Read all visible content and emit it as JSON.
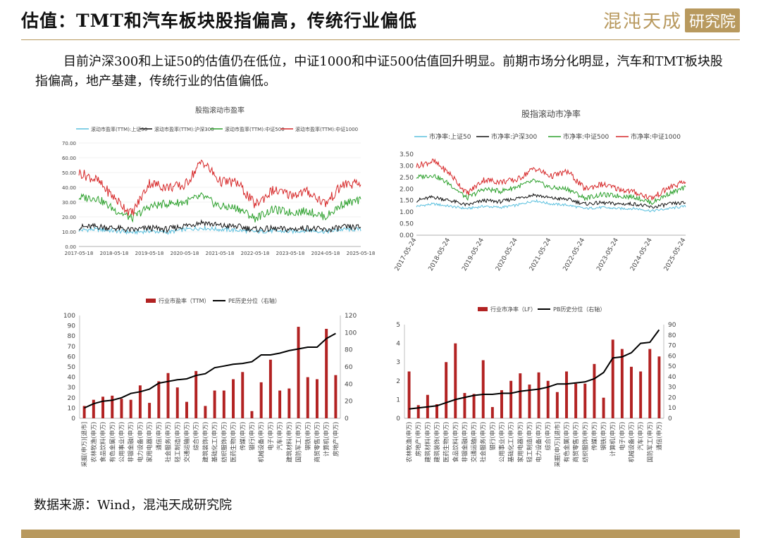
{
  "page": {
    "title": "估值：TMT和汽车板块股指偏高，传统行业偏低",
    "logo_text": "混沌天成",
    "logo_box_text": "研究院",
    "paragraph": "目前沪深300和上证50的估值仍在低位，中证1000和中证500估值回升明显。前期市场分化明显，汽车和TMT板块股指偏高，地产基建，传统行业的估值偏低。",
    "source": "数据来源：Wind，混沌天成研究院"
  },
  "colors": {
    "gold": "#b8995e",
    "red": "#d62728",
    "green": "#2ca02c",
    "black": "#111111",
    "blue": "#5bc0de",
    "bar": "#b22222"
  },
  "chart_data": [
    {
      "type": "line",
      "title": "股指滚动市盈率",
      "ylim": [
        0,
        70
      ],
      "yticks": [
        "0.00",
        "10.00",
        "20.00",
        "30.00",
        "40.00",
        "50.00",
        "60.00",
        "70.00"
      ],
      "xticks": [
        "2017-05-18",
        "2018-05-18",
        "2019-05-18",
        "2020-05-18",
        "2021-05-18",
        "2022-05-18",
        "2023-05-18",
        "2024-05-18",
        "2025-05-18"
      ],
      "series": [
        {
          "name": "滚动市盈率(TTM):上证50",
          "color": "#5bc0de",
          "values": [
            11,
            11.5,
            10.5,
            9.5,
            10.5,
            9.5,
            11.5,
            12.5,
            11.5,
            11,
            10,
            10.5,
            10,
            11,
            10,
            11.5,
            11.5
          ]
        },
        {
          "name": "滚动市盈率(TTM):沪深300",
          "color": "#111111",
          "values": [
            13,
            13.5,
            12.5,
            11,
            12.5,
            11.5,
            14,
            16.5,
            14,
            13.5,
            11.5,
            12,
            11.5,
            12.5,
            11,
            13,
            13
          ]
        },
        {
          "name": "滚动市盈率(TTM):中证500",
          "color": "#2ca02c",
          "values": [
            33,
            33,
            25,
            19,
            27,
            29,
            30,
            34,
            27,
            26,
            19,
            25,
            23,
            24,
            20,
            29,
            31
          ]
        },
        {
          "name": "滚动市盈率(TTM):中证1000",
          "color": "#d62728",
          "values": [
            50,
            45,
            33,
            22,
            43,
            40,
            41,
            58,
            44,
            43,
            28,
            38,
            35,
            37,
            29,
            42,
            42
          ]
        }
      ]
    },
    {
      "type": "line",
      "title": "股指滚动市净率",
      "ylim": [
        0,
        3.5
      ],
      "yticks": [
        "0.00",
        "0.50",
        "1.00",
        "1.50",
        "2.00",
        "2.50",
        "3.00",
        "3.50"
      ],
      "xticks": [
        "2017-05-24",
        "2018-05-24",
        "2019-05-24",
        "2020-05-24",
        "2021-05-24",
        "2022-05-24",
        "2023-05-24",
        "2024-05-24",
        "2025-05-24"
      ],
      "series": [
        {
          "name": "市净率:上证50",
          "color": "#5bc0de",
          "values": [
            1.25,
            1.35,
            1.25,
            1.15,
            1.25,
            1.2,
            1.3,
            1.5,
            1.35,
            1.3,
            1.15,
            1.2,
            1.15,
            1.15,
            1.05,
            1.15,
            1.25
          ]
        },
        {
          "name": "市净率:沪深300",
          "color": "#111111",
          "values": [
            1.5,
            1.65,
            1.5,
            1.3,
            1.5,
            1.45,
            1.6,
            1.75,
            1.6,
            1.55,
            1.35,
            1.4,
            1.35,
            1.35,
            1.2,
            1.35,
            1.4
          ]
        },
        {
          "name": "市净率:中证500",
          "color": "#2ca02c",
          "values": [
            2.5,
            2.6,
            2.2,
            1.6,
            2.0,
            1.9,
            2.1,
            2.35,
            2.05,
            2.0,
            1.6,
            1.75,
            1.7,
            1.65,
            1.4,
            1.8,
            2.05
          ]
        },
        {
          "name": "市净率:中证1000",
          "color": "#d62728",
          "values": [
            3.0,
            3.2,
            2.65,
            1.8,
            2.4,
            2.3,
            2.4,
            2.9,
            2.55,
            2.75,
            2.0,
            2.2,
            2.0,
            1.85,
            1.6,
            2.05,
            2.3
          ]
        }
      ]
    },
    {
      "type": "bar",
      "legend": [
        "行业市盈率（TTM）",
        "PE历史分位（右轴）"
      ],
      "ylim": [
        0,
        100
      ],
      "ylim_right": [
        0,
        120
      ],
      "yticks": [
        "0",
        "10",
        "20",
        "30",
        "40",
        "50",
        "60",
        "70",
        "80",
        "90",
        "100"
      ],
      "yticks_right": [
        "0",
        "20",
        "40",
        "60",
        "80",
        "100",
        "120"
      ],
      "categories": [
        "采掘(申万)[退市]",
        "农林牧渔(申万)",
        "食品饮料(申万)",
        "有色金属(申万)",
        "公用事业(申万)",
        "非银金融(申万)",
        "电力设备(申万)",
        "家用电器(申万)",
        "通信(申万)",
        "社会服务(申万)",
        "轻工制造(申万)",
        "交通运输(申万)",
        "综合(申万)",
        "建筑装饰(申万)",
        "基础化工(申万)",
        "纺织服饰(申万)",
        "医药生物(申万)",
        "传媒(申万)",
        "银行(申万)",
        "机械设备(申万)",
        "电子(申万)",
        "汽车(申万)",
        "建筑材料(申万)",
        "国防军工(申万)",
        "钢铁(申万)",
        "商贸零售(申万)",
        "计算机(申万)",
        "房地产(申万)"
      ],
      "values": [
        12,
        18,
        21,
        22,
        19,
        18,
        32,
        15,
        36,
        44,
        30,
        16,
        46,
        12,
        27,
        27,
        38,
        45,
        7,
        35,
        57,
        27,
        29,
        89,
        40,
        38,
        87,
        42
      ],
      "percentile": [
        12,
        17,
        20,
        21,
        24,
        29,
        31,
        34,
        41,
        43,
        45,
        46,
        50,
        52,
        59,
        61,
        63,
        64,
        66,
        74,
        74,
        76,
        79,
        81,
        83,
        83,
        93,
        99
      ]
    },
    {
      "type": "bar",
      "legend": [
        "行业市净率（LF）",
        "PB历史分位（右轴）"
      ],
      "ylim": [
        0,
        5
      ],
      "ylim_right": [
        0,
        90
      ],
      "yticks": [
        "0",
        "1",
        "2",
        "3",
        "4",
        "5"
      ],
      "yticks_right": [
        "0",
        "10",
        "20",
        "30",
        "40",
        "50",
        "60",
        "70",
        "80",
        "90"
      ],
      "categories": [
        "农林牧渔(申万)",
        "房地产(申万)",
        "建筑材料(申万)",
        "建筑装饰(申万)",
        "医药生物(申万)",
        "食品饮料(申万)",
        "非银金融(申万)",
        "交通运输(申万)",
        "社会服务(申万)",
        "银行(申万)",
        "公用事业(申万)",
        "基础化工(申万)",
        "家用电器(申万)",
        "轻工制造(申万)",
        "电力设备(申万)",
        "综合(申万)",
        "采掘(申万)[退市]",
        "有色金属(申万)",
        "商贸零售(申万)",
        "纺织服饰(申万)",
        "传媒(申万)",
        "钢铁(申万)",
        "计算机(申万)",
        "电子(申万)",
        "机械设备(申万)",
        "汽车(申万)",
        "国防军工(申万)",
        "通信(申万)"
      ],
      "values": [
        2.5,
        0.7,
        1.25,
        0.75,
        3.0,
        4.0,
        1.35,
        1.3,
        3.1,
        0.6,
        1.5,
        2.0,
        2.4,
        1.8,
        2.45,
        2.0,
        1.4,
        2.5,
        1.85,
        1.85,
        2.9,
        1.1,
        4.2,
        3.7,
        2.75,
        2.5,
        3.7,
        3.3
      ],
      "percentile": [
        9,
        10,
        11,
        12,
        15,
        18,
        20,
        22,
        23,
        23,
        24,
        24,
        26,
        27,
        28,
        30,
        33,
        33,
        34,
        35,
        38,
        44,
        58,
        59,
        63,
        72,
        73,
        85
      ]
    }
  ]
}
